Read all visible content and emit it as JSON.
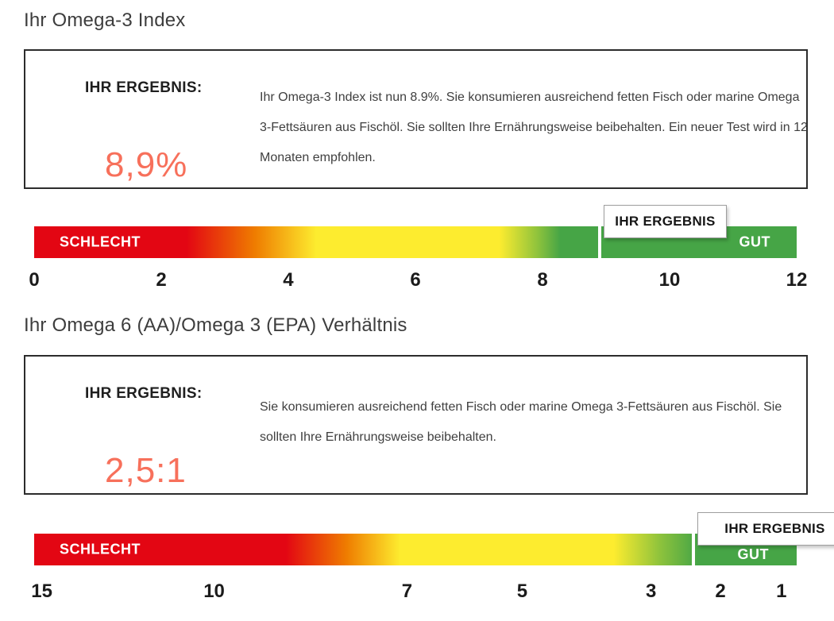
{
  "colors": {
    "bad_red": "#e30613",
    "mid_yellow": "#fdec2f",
    "good_green": "#46a546",
    "result_accent": "#f7705b",
    "text_dark": "#3d3d3d"
  },
  "sections": [
    {
      "title": "Ihr Omega-3 Index",
      "result_label": "IHR ERGEBNIS:",
      "result_value": "8,9%",
      "description": "Ihr Omega-3 Index ist nun 8.9%. Sie konsumieren ausreichend fetten Fisch oder marine Omega 3-Fettsäuren aus Fischöl. Sie sollten Ihre Ernährungsweise beibehalten. Ein neuer Test wird in 12 Monaten empfohlen.",
      "gauge": {
        "bad_label": "SCHLECHT",
        "good_label": "GUT",
        "marker_label": "IHR ERGEBNIS",
        "marker_pos_pct": 74.2,
        "ticks": [
          {
            "label": "0",
            "pos_pct": 0
          },
          {
            "label": "2",
            "pos_pct": 16.67
          },
          {
            "label": "4",
            "pos_pct": 33.33
          },
          {
            "label": "6",
            "pos_pct": 50
          },
          {
            "label": "8",
            "pos_pct": 66.67
          },
          {
            "label": "10",
            "pos_pct": 83.33
          },
          {
            "label": "12",
            "pos_pct": 100
          }
        ]
      }
    },
    {
      "title": "Ihr Omega 6 (AA)/Omega 3 (EPA) Verhältnis",
      "result_label": "IHR ERGEBNIS:",
      "result_value": "2,5:1",
      "description": "Sie konsumieren ausreichend fetten Fisch oder marine Omega 3-Fettsäuren aus Fischöl. Sie sollten Ihre Ernährungsweise beibehalten.",
      "gauge": {
        "bad_label": "SCHLECHT",
        "good_label": "GUT",
        "marker_label": "IHR ERGEBNIS",
        "marker_pos_pct": 86.5,
        "ticks": [
          {
            "label": "15",
            "pos_pct": 1
          },
          {
            "label": "10",
            "pos_pct": 23.6
          },
          {
            "label": "7",
            "pos_pct": 48.9
          },
          {
            "label": "5",
            "pos_pct": 64
          },
          {
            "label": "3",
            "pos_pct": 80.9
          },
          {
            "label": "2",
            "pos_pct": 90
          },
          {
            "label": "1",
            "pos_pct": 98
          }
        ]
      }
    }
  ],
  "chart_data": [
    {
      "type": "gauge",
      "title": "Ihr Omega-3 Index",
      "value": 8.9,
      "value_display": "8,9%",
      "unit": "%",
      "axis_range": [
        0,
        12
      ],
      "axis_ticks": [
        0,
        2,
        4,
        6,
        8,
        10,
        12
      ],
      "direction": "low-left-to-high-right",
      "zones": [
        {
          "label": "SCHLECHT",
          "color": "#e30613",
          "range_approx": [
            0,
            3.5
          ]
        },
        {
          "label": "",
          "color": "#fdec2f",
          "range_approx": [
            3.5,
            7.8
          ]
        },
        {
          "label": "GUT",
          "color": "#46a546",
          "range_approx": [
            7.8,
            12
          ]
        }
      ],
      "marker": {
        "label": "IHR ERGEBNIS",
        "value": 8.9
      }
    },
    {
      "type": "gauge",
      "title": "Ihr Omega 6 (AA)/Omega 3 (EPA) Verhältnis",
      "value": 2.5,
      "value_display": "2,5:1",
      "unit": "ratio",
      "axis_range": [
        15,
        1
      ],
      "axis_ticks": [
        15,
        10,
        7,
        5,
        3,
        2,
        1
      ],
      "direction": "high-left-to-low-right",
      "zones": [
        {
          "label": "SCHLECHT",
          "color": "#e30613",
          "range_approx": [
            15,
            8
          ]
        },
        {
          "label": "",
          "color": "#fdec2f",
          "range_approx": [
            8,
            3
          ]
        },
        {
          "label": "GUT",
          "color": "#46a546",
          "range_approx": [
            2.5,
            1
          ]
        }
      ],
      "marker": {
        "label": "IHR ERGEBNIS",
        "value": 2.5
      }
    }
  ]
}
